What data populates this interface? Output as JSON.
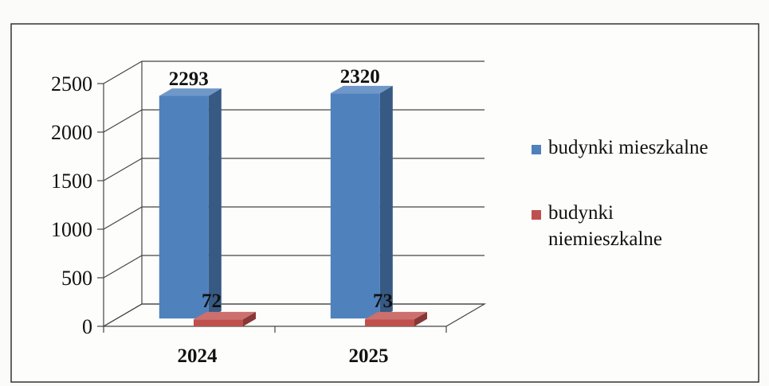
{
  "chart_data": {
    "type": "bar",
    "title": "",
    "xlabel": "",
    "ylabel": "",
    "categories": [
      "2024",
      "2025"
    ],
    "ylim": [
      0,
      2500
    ],
    "yticks": [
      "0",
      "500",
      "1000",
      "1500",
      "2000",
      "2500"
    ],
    "grid": true,
    "legend_position": "right",
    "series": [
      {
        "name": "budynki mieszkalne",
        "values": [
          2293,
          2320
        ],
        "color": "#4f81bd"
      },
      {
        "name": "budynki niemieszkalne",
        "values": [
          72,
          73
        ],
        "color": "#c0504d"
      }
    ],
    "data_labels": [
      "2293",
      "2320",
      "72",
      "73"
    ],
    "legend": {
      "items": [
        {
          "lines": [
            "budynki mieszkalne"
          ],
          "color": "#4f81bd"
        },
        {
          "lines": [
            "budynki",
            "niemieszkalne"
          ],
          "color": "#c0504d"
        }
      ]
    }
  }
}
